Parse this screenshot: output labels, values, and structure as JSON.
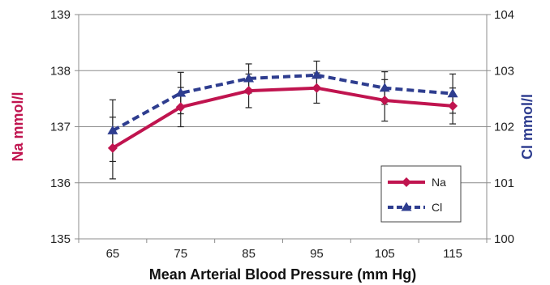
{
  "chart_data": {
    "type": "line",
    "title": "",
    "x": [
      65,
      75,
      85,
      95,
      105,
      115
    ],
    "xlabel": "Mean Arterial Blood Pressure (mm Hg)",
    "ylabel_left": "Na mmol/l",
    "ylabel_right": "Cl mmol/l",
    "ylim_left": [
      135,
      139
    ],
    "ylim_right": [
      100,
      104
    ],
    "yticks_left": [
      135,
      136,
      137,
      138,
      139
    ],
    "yticks_right": [
      100,
      101,
      102,
      103,
      104
    ],
    "grid": "horizontal",
    "legend_position": "bottom-right",
    "series": [
      {
        "name": "Na",
        "axis": "left",
        "color": "#c0144f",
        "line_style": "solid",
        "marker": "diamond",
        "values": [
          136.62,
          137.35,
          137.64,
          137.69,
          137.47,
          137.37
        ],
        "error": [
          0.55,
          0.35,
          0.3,
          0.27,
          0.37,
          0.32
        ]
      },
      {
        "name": "Cl",
        "axis": "right",
        "color": "#2e3d8f",
        "line_style": "dashed",
        "marker": "triangle",
        "values": [
          101.93,
          102.6,
          102.86,
          102.92,
          102.69,
          102.59
        ],
        "error": [
          0.55,
          0.37,
          0.26,
          0.25,
          0.29,
          0.35
        ]
      }
    ]
  }
}
